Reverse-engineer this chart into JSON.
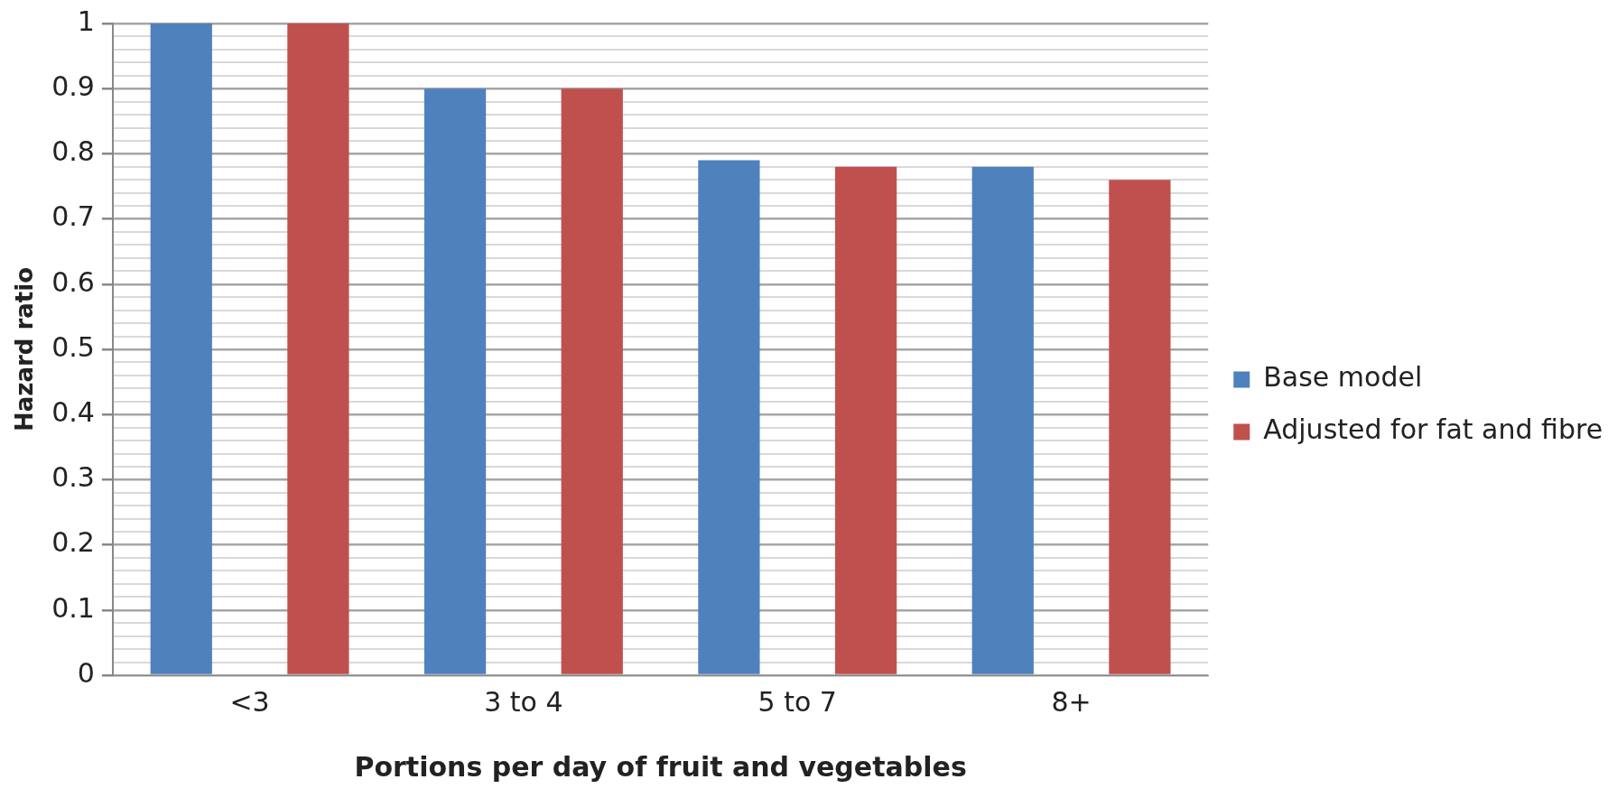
{
  "chart_data": {
    "type": "bar",
    "xlabel": "Portions per day of fruit and vegetables",
    "ylabel": "Hazard ratio",
    "categories": [
      "<3",
      "3 to 4",
      "5 to 7",
      "8+"
    ],
    "series": [
      {
        "name": "Base model",
        "color": "#4f81bd",
        "values": [
          1,
          0.9,
          0.79,
          0.78
        ]
      },
      {
        "name": "Adjusted for fat and fibre",
        "color": "#c0504d",
        "values": [
          1,
          0.9,
          0.78,
          0.76
        ]
      }
    ],
    "ylim": [
      0,
      1
    ],
    "yticks": [
      0,
      {
        "value": 0.02,
        "label": null
      },
      {
        "value": 0.04,
        "label": null
      },
      {
        "value": 0.06,
        "label": null
      },
      {
        "value": 0.08,
        "label": null
      },
      0.1,
      {
        "value": 0.12,
        "label": null
      },
      {
        "value": 0.14,
        "label": null
      },
      {
        "value": 0.16,
        "label": null
      },
      {
        "value": 0.18,
        "label": null
      },
      0.2,
      {
        "value": 0.22,
        "label": null
      },
      {
        "value": 0.24,
        "label": null
      },
      {
        "value": 0.26,
        "label": null
      },
      {
        "value": 0.28,
        "label": null
      },
      0.3,
      {
        "value": 0.32,
        "label": null
      },
      {
        "value": 0.34,
        "label": null
      },
      {
        "value": 0.36,
        "label": null
      },
      {
        "value": 0.38,
        "label": null
      },
      0.4,
      {
        "value": 0.42,
        "label": null
      },
      {
        "value": 0.44,
        "label": null
      },
      {
        "value": 0.46,
        "label": null
      },
      {
        "value": 0.48,
        "label": null
      },
      0.5,
      {
        "value": 0.52,
        "label": null
      },
      {
        "value": 0.54,
        "label": null
      },
      {
        "value": 0.56,
        "label": null
      },
      {
        "value": 0.58,
        "label": null
      },
      0.6,
      {
        "value": 0.62,
        "label": null
      },
      {
        "value": 0.64,
        "label": null
      },
      {
        "value": 0.66,
        "label": null
      },
      {
        "value": 0.68,
        "label": null
      },
      0.7,
      {
        "value": 0.72,
        "label": null
      },
      {
        "value": 0.74,
        "label": null
      },
      {
        "value": 0.76,
        "label": null
      },
      {
        "value": 0.78,
        "label": null
      },
      0.8,
      {
        "value": 0.82,
        "label": null
      },
      {
        "value": 0.84,
        "label": null
      },
      {
        "value": 0.86,
        "label": null
      },
      {
        "value": 0.88,
        "label": null
      },
      0.9,
      {
        "value": 0.92,
        "label": null
      },
      {
        "value": 0.94,
        "label": null
      },
      {
        "value": 0.96,
        "label": null
      },
      {
        "value": 0.98,
        "label": null
      },
      1
    ],
    "grid": "y",
    "legend": "right"
  }
}
